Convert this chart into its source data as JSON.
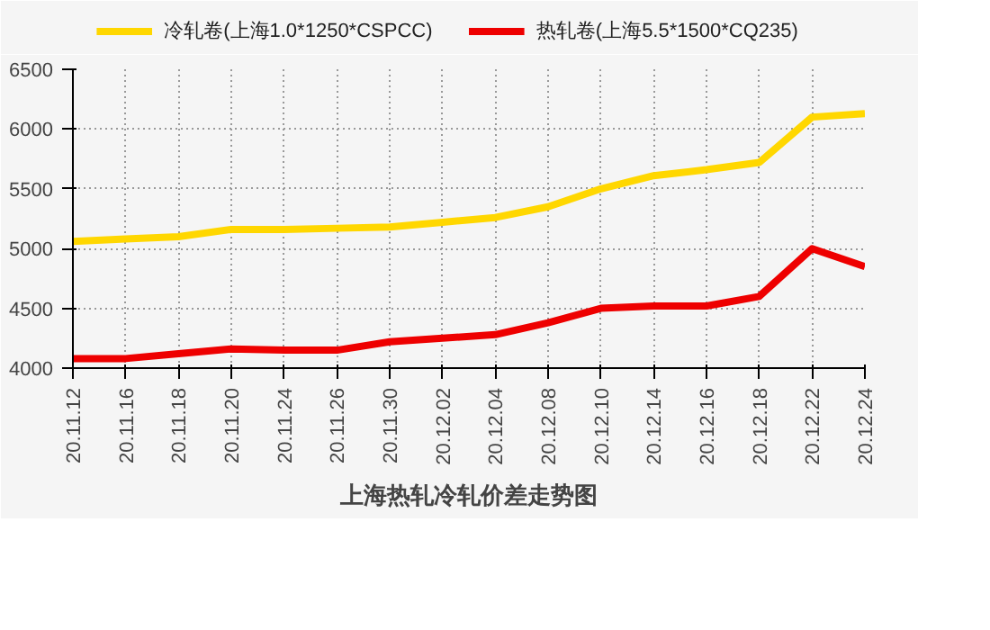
{
  "chart_data": {
    "type": "line",
    "title": "上海热轧冷轧价差走势图",
    "categories": [
      "20.11.12",
      "20.11.16",
      "20.11.18",
      "20.11.20",
      "20.11.24",
      "20.11.26",
      "20.11.30",
      "20.12.02",
      "20.12.04",
      "20.12.08",
      "20.12.10",
      "20.12.14",
      "20.12.16",
      "20.12.18",
      "20.12.22",
      "20.12.24"
    ],
    "series": [
      {
        "name": "冷轧卷(上海1.0*1250*CSPCC)",
        "color": "#ffd700",
        "values": [
          5060,
          5080,
          5100,
          5160,
          5160,
          5170,
          5180,
          5220,
          5260,
          5350,
          5500,
          5610,
          5660,
          5720,
          6100,
          6130
        ]
      },
      {
        "name": "热轧卷(上海5.5*1500*CQ235)",
        "color": "#ee0000",
        "values": [
          4080,
          4080,
          4120,
          4160,
          4150,
          4150,
          4220,
          4250,
          4280,
          4380,
          4500,
          4520,
          4520,
          4600,
          5000,
          4850
        ]
      }
    ],
    "ylim": [
      4000,
      6500
    ],
    "yticks": [
      4000,
      4500,
      5000,
      5500,
      6000,
      6500
    ],
    "grid": true,
    "legend": "top",
    "line_style": "solid",
    "marker": "none"
  }
}
